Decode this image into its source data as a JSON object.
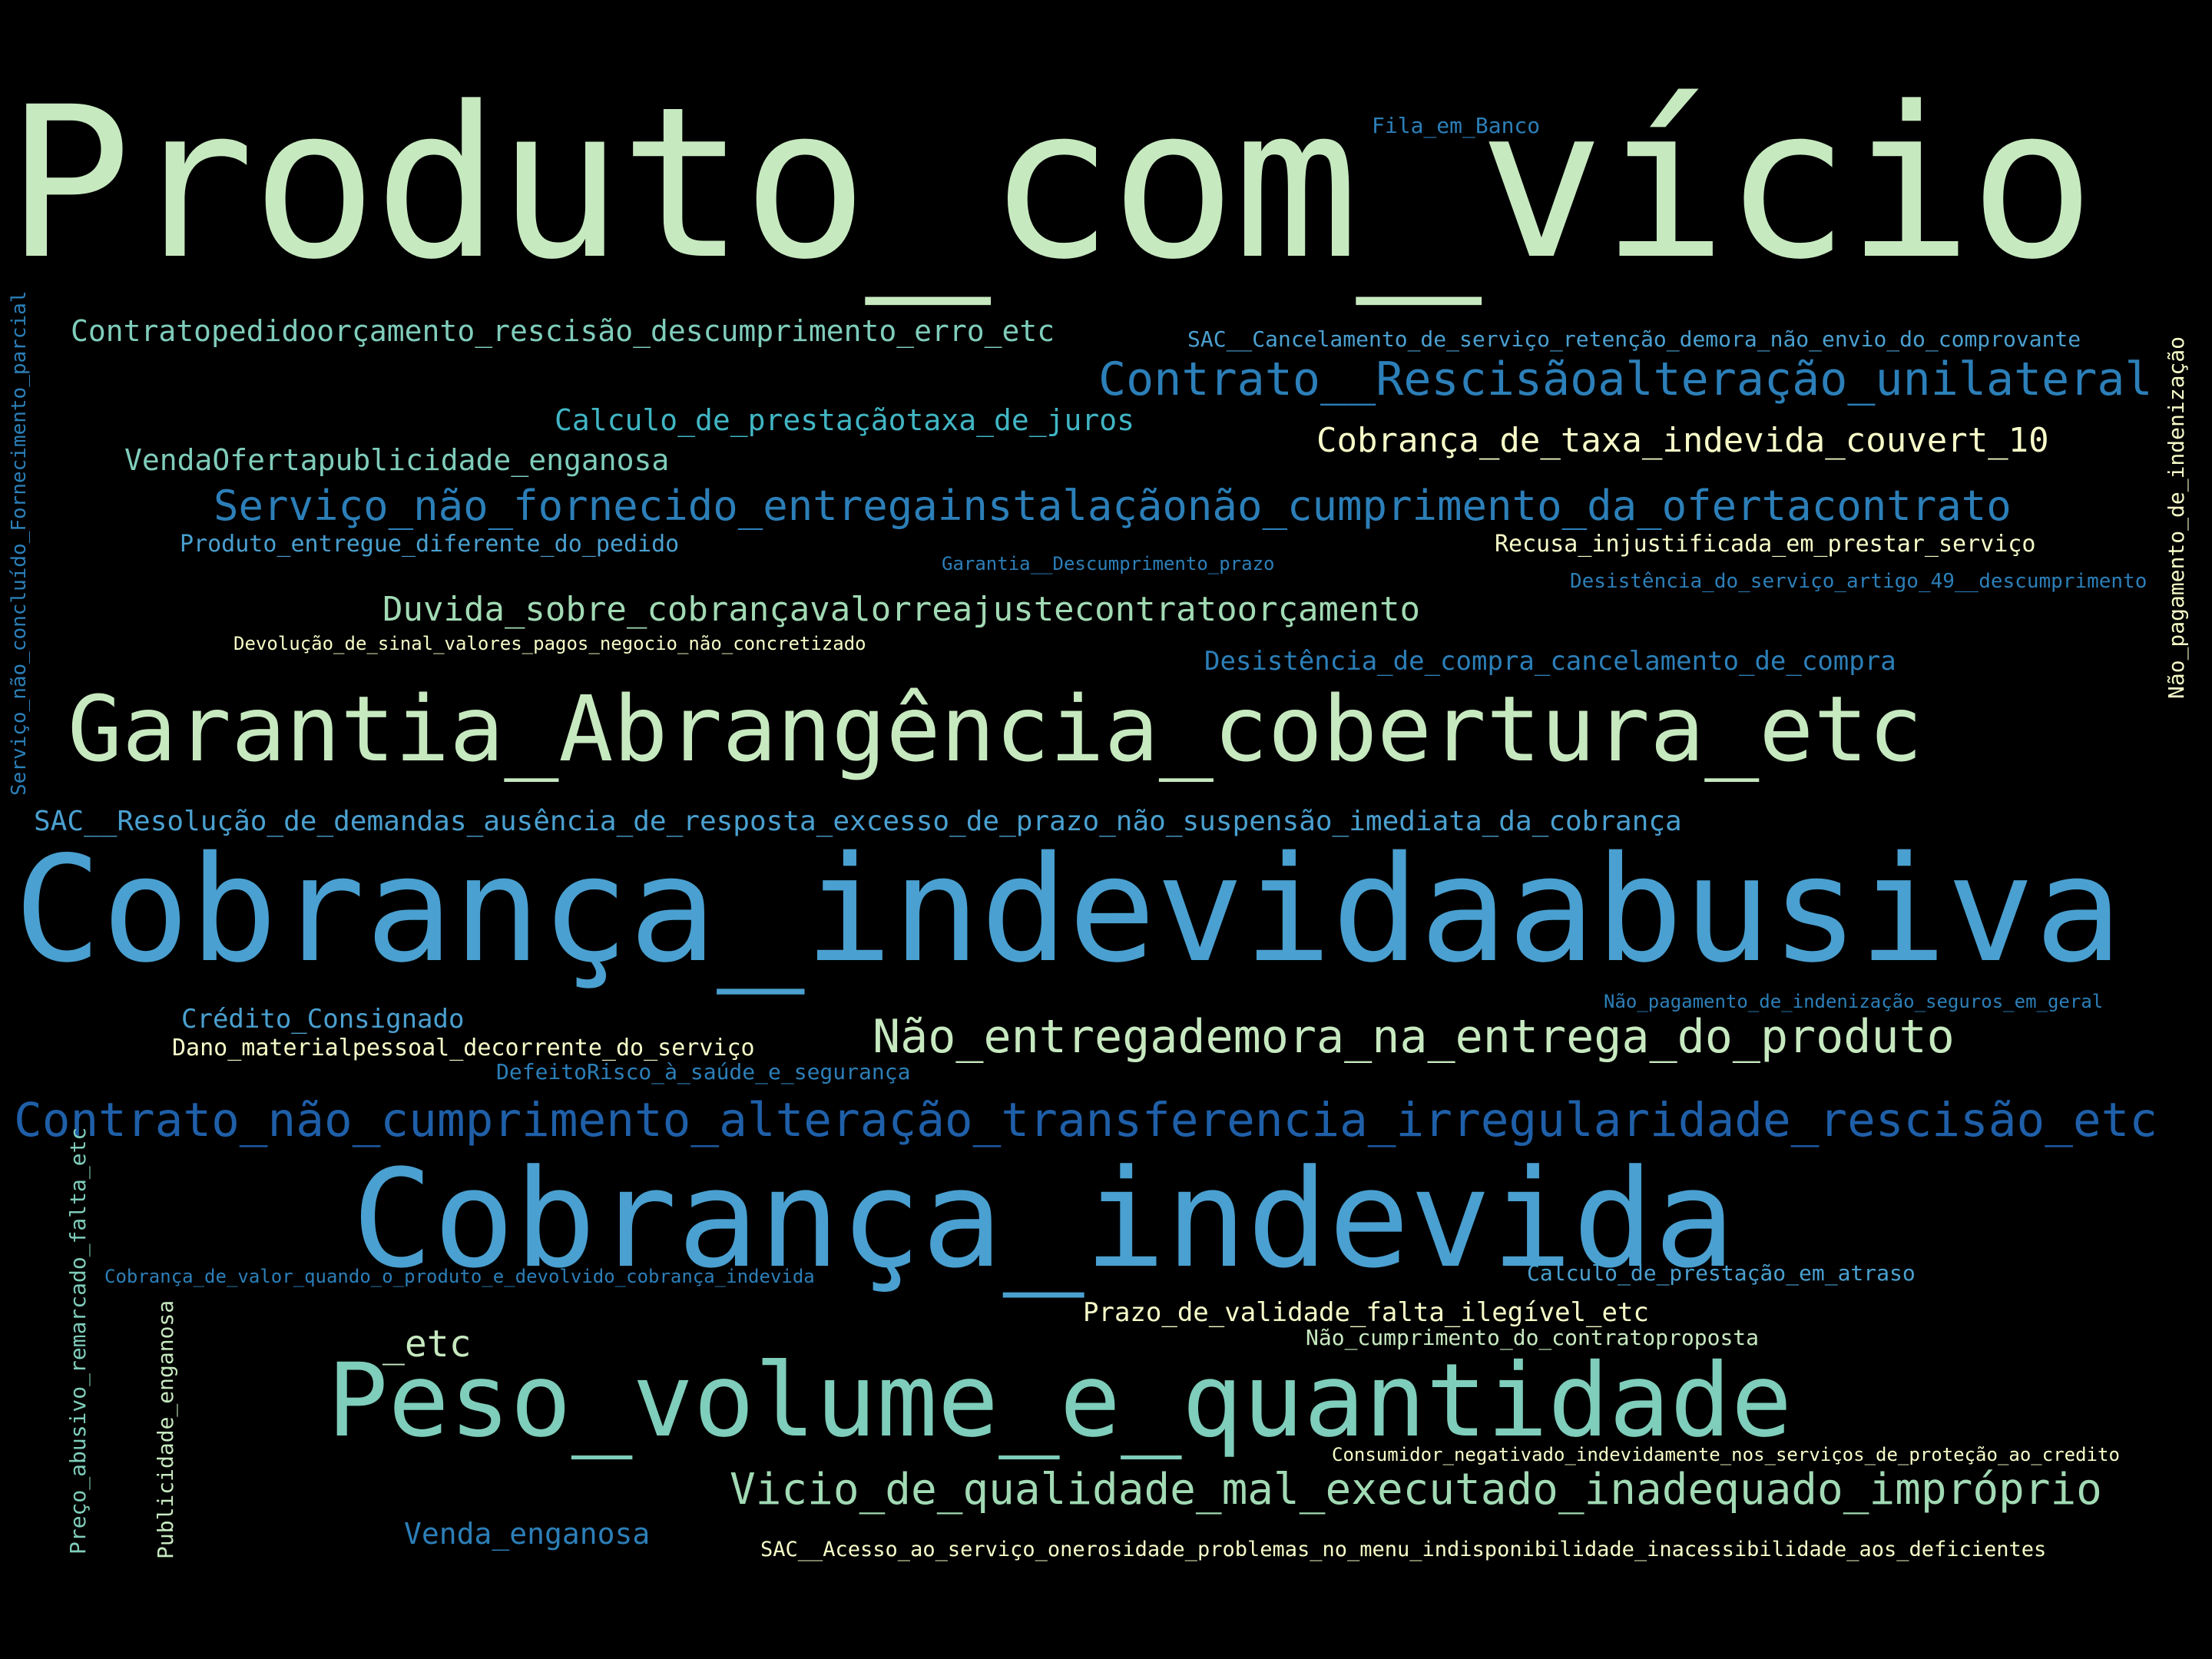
{
  "title": "word cloud",
  "palette": {
    "background": "#000000",
    "pale_green": "#c7e9c0",
    "mint": "#a1dab4",
    "teal": "#7fcdbb",
    "sky": "#41b6c4",
    "azure": "#4aa0d0",
    "blue": "#2c7fb8",
    "navy": "#1f5fa8",
    "cream": "#f7fcc8"
  },
  "words": [
    {
      "id": "w01",
      "text": "Produto_com_vício",
      "weight": 1.0
    },
    {
      "id": "w02",
      "text": "Fila_em_Banco",
      "weight": 0.02
    },
    {
      "id": "w03",
      "text": "Contratopedidoorçamento_rescisão_descumprimento_erro_etc",
      "weight": 0.05
    },
    {
      "id": "w04",
      "text": "SAC__Cancelamento_de_serviço_retenção_demora_não_envio_do_comprovante",
      "weight": 0.03
    },
    {
      "id": "w05",
      "text": "Contrato__Rescisãoalteração_unilateral",
      "weight": 0.1
    },
    {
      "id": "w06",
      "text": "Calculo_de_prestaçãotaxa_de_juros",
      "weight": 0.05
    },
    {
      "id": "w07",
      "text": "Cobrança_de_taxa_indevida_couvert_10",
      "weight": 0.07
    },
    {
      "id": "w08",
      "text": "VendaOfertapublicidade_enganosa",
      "weight": 0.05
    },
    {
      "id": "w09",
      "text": "Serviço_não_fornecido_entregainstalaçãonão_cumprimento_da_ofertacontrato",
      "weight": 0.09
    },
    {
      "id": "w10",
      "text": "Produto_entregue_diferente_do_pedido",
      "weight": 0.04
    },
    {
      "id": "w11",
      "text": "Recusa_injustificada_em_prestar_serviço",
      "weight": 0.04
    },
    {
      "id": "w12",
      "text": "Garantia__Descumprimento_prazo",
      "weight": 0.02
    },
    {
      "id": "w13",
      "text": "Desistência_do_serviço_artigo_49__descumprimento",
      "weight": 0.03
    },
    {
      "id": "w14",
      "text": "Duvida_sobre_cobrançavalorreajustecontratoorçamento",
      "weight": 0.06
    },
    {
      "id": "w15",
      "text": "Devolução_de_sinal_valores_pagos_negocio_não_concretizado",
      "weight": 0.02
    },
    {
      "id": "w16",
      "text": "Desistência_de_compra_cancelamento_de_compra",
      "weight": 0.05
    },
    {
      "id": "w17",
      "text": "Garantia_Abrangência_cobertura_etc",
      "weight": 0.3
    },
    {
      "id": "w18",
      "text": "SAC__Resolução_de_demandas_ausência_de_resposta_excesso_de_prazo_não_suspensão_imediata_da_cobrança",
      "weight": 0.05
    },
    {
      "id": "w19",
      "text": "Cobrança_indevidaabusiva",
      "weight": 0.8
    },
    {
      "id": "w20",
      "text": "Crédito_Consignado",
      "weight": 0.04
    },
    {
      "id": "w21",
      "text": "Dano_materialpessoal_decorrente_do_serviço",
      "weight": 0.04
    },
    {
      "id": "w22",
      "text": "DefeitoRisco_à_saúde_e_segurança",
      "weight": 0.03
    },
    {
      "id": "w23",
      "text": "Não_entregademora_na_entrega_do_produto",
      "weight": 0.12
    },
    {
      "id": "w24",
      "text": "Não_pagamento_de_indenização_seguros_em_geral",
      "weight": 0.02
    },
    {
      "id": "w25",
      "text": "Contrato_não_cumprimento_alteração_transferencia_irregularidade_rescisão_etc",
      "weight": 0.12
    },
    {
      "id": "w26",
      "text": "Cobrança_indevida",
      "weight": 0.55
    },
    {
      "id": "w27",
      "text": "Cobrança_de_valor_quando_o_produto_e_devolvido_cobrança_indevida",
      "weight": 0.02
    },
    {
      "id": "w28",
      "text": "Calculo_de_prestação_em_atraso",
      "weight": 0.03
    },
    {
      "id": "w29",
      "text": "Prazo_de_validade_falta_ilegível_etc",
      "weight": 0.04
    },
    {
      "id": "w30",
      "text": "_etc",
      "weight": 0.06
    },
    {
      "id": "w31",
      "text": "Não_cumprimento_do_contratoproposta",
      "weight": 0.03
    },
    {
      "id": "w32",
      "text": "Peso_volume_e_quantidade",
      "weight": 0.4
    },
    {
      "id": "w33",
      "text": "Consumidor_negativado_indevidamente_nos_serviços_de_proteção_ao_credito",
      "weight": 0.02
    },
    {
      "id": "w34",
      "text": "Vicio_de_qualidade_mal_executado_inadequado_impróprio",
      "weight": 0.09
    },
    {
      "id": "w35",
      "text": "Venda_enganosa",
      "weight": 0.04
    },
    {
      "id": "w36",
      "text": "SAC__Acesso_ao_serviço_onerosidade_problemas_no_menu_indisponibilidade_inacessibilidade_aos_deficientes",
      "weight": 0.02
    },
    {
      "id": "w37",
      "text": "Serviço_não_concluído_Fornecimento_parcial",
      "weight": 0.03
    },
    {
      "id": "w38",
      "text": "Não_pagamento_de_indenização",
      "weight": 0.03
    },
    {
      "id": "w39",
      "text": "Preço_abusivo_remarcado_falta_etc",
      "weight": 0.03
    },
    {
      "id": "w40",
      "text": "Publicidade_enganosa",
      "weight": 0.03
    }
  ]
}
